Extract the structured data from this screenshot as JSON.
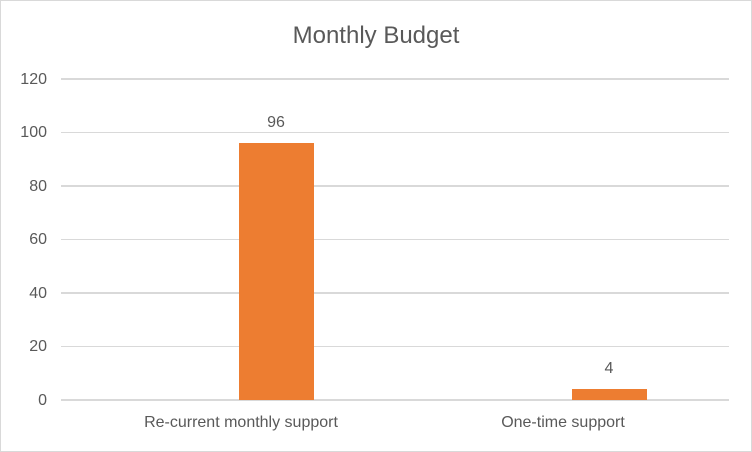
{
  "chart": {
    "title": "Monthly Budget",
    "text_color": "#595959",
    "gridline_color": "#d9d9d9",
    "border_color": "#d9d9d9",
    "background_color": "#ffffff"
  },
  "chart_data": {
    "type": "bar",
    "title": "Monthly Budget",
    "categories": [
      "Re-current monthly support",
      "One-time support"
    ],
    "values": [
      96,
      4
    ],
    "data_labels": [
      "96",
      "4"
    ],
    "xlabel": "",
    "ylabel": "",
    "ylim": [
      0,
      120
    ],
    "ytick_step": 20,
    "ytick_labels": [
      "0",
      "20",
      "40",
      "60",
      "80",
      "100",
      "120"
    ],
    "grid": true,
    "legend": false,
    "bar_color": "#ED7D31"
  }
}
